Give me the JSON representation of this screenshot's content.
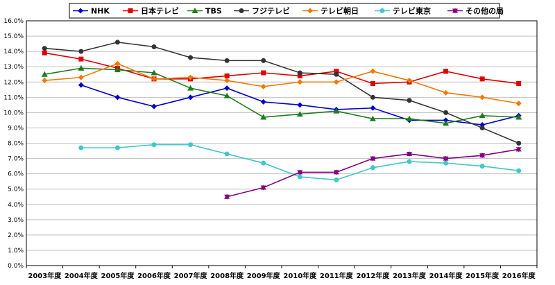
{
  "chart_data": {
    "type": "line",
    "title": "",
    "xlabel": "",
    "ylabel": "",
    "categories": [
      "2003年度",
      "2004年度",
      "2005年度",
      "2006年度",
      "2007年度",
      "2008年度",
      "2009年度",
      "2010年度",
      "2011年度",
      "2012年度",
      "2013年度",
      "2014年度",
      "2015年度",
      "2016年度"
    ],
    "ylim": [
      0,
      16
    ],
    "yticks": [
      "0.0%",
      "1.0%",
      "2.0%",
      "3.0%",
      "4.0%",
      "5.0%",
      "6.0%",
      "7.0%",
      "8.0%",
      "9.0%",
      "10.0%",
      "11.0%",
      "12.0%",
      "13.0%",
      "14.0%",
      "15.0%",
      "16.0%"
    ],
    "grid": true,
    "legend_position": "top",
    "series": [
      {
        "name": "NHK",
        "color": "#0000CC",
        "marker": "diamond",
        "values": [
          null,
          11.8,
          11.0,
          10.4,
          11.0,
          11.6,
          10.7,
          10.5,
          10.2,
          10.3,
          9.5,
          9.5,
          9.2,
          9.8
        ]
      },
      {
        "name": "日本テレビ",
        "color": "#E00000",
        "marker": "square",
        "values": [
          13.9,
          13.5,
          12.9,
          12.2,
          12.2,
          12.4,
          12.6,
          12.4,
          12.7,
          11.9,
          12.0,
          12.7,
          12.2,
          11.9
        ]
      },
      {
        "name": "TBS",
        "color": "#1E7B1E",
        "marker": "triangle",
        "values": [
          12.5,
          12.9,
          12.8,
          12.6,
          11.6,
          11.1,
          9.7,
          9.9,
          10.1,
          9.6,
          9.6,
          9.3,
          9.8,
          9.7
        ]
      },
      {
        "name": "フジテレビ",
        "color": "#333333",
        "marker": "circle",
        "values": [
          14.2,
          14.0,
          14.6,
          14.3,
          13.6,
          13.4,
          13.4,
          12.6,
          12.5,
          11.0,
          10.8,
          10.0,
          9.0,
          8.0
        ]
      },
      {
        "name": "テレビ朝日",
        "color": "#F07800",
        "marker": "diamond",
        "values": [
          12.1,
          12.3,
          13.2,
          12.2,
          12.3,
          12.1,
          11.7,
          12.0,
          12.0,
          12.7,
          12.1,
          11.3,
          11.0,
          10.6
        ]
      },
      {
        "name": "テレビ東京",
        "color": "#40C8C8",
        "marker": "circle",
        "values": [
          null,
          7.7,
          7.7,
          7.9,
          7.9,
          7.3,
          6.7,
          5.8,
          5.6,
          6.4,
          6.8,
          6.7,
          6.5,
          6.2
        ]
      },
      {
        "name": "その他の局",
        "color": "#800080",
        "marker": "star",
        "values": [
          null,
          null,
          null,
          null,
          null,
          4.5,
          5.1,
          6.1,
          6.1,
          7.0,
          7.3,
          7.0,
          7.2,
          7.6
        ]
      }
    ]
  }
}
